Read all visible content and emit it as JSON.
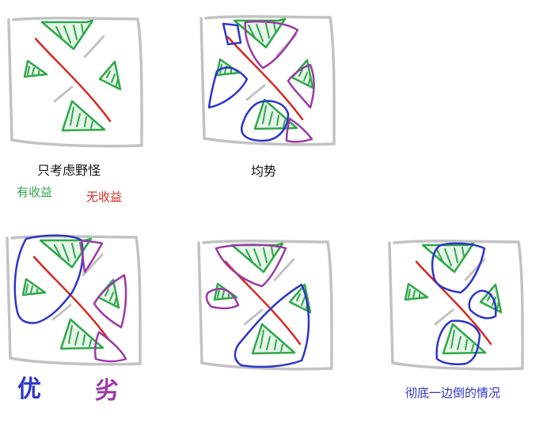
{
  "colors": {
    "frame": "#c2c2c2",
    "green": "#2ea84a",
    "red": "#d8281f",
    "blue": "#2c35c8",
    "purple": "#9b3aa6",
    "text": "#111111"
  },
  "labels": {
    "only_monsters": "只考虑野怪",
    "profit": "有收益",
    "no_profit": "无收益",
    "balanced": "均势",
    "advantage": "优",
    "disadvantage": "劣",
    "one_sided": "彻底一边倒的情况"
  }
}
